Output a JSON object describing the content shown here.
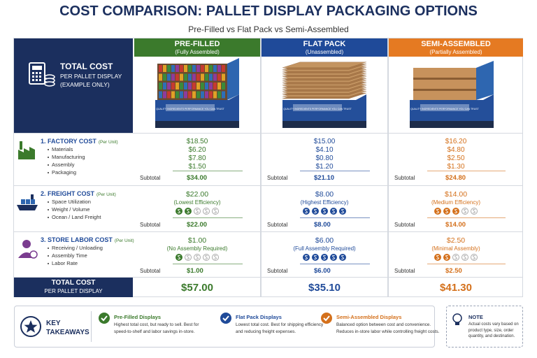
{
  "title": "COST COMPARISON: PALLET DISPLAY PACKAGING OPTIONS",
  "subtitle": "Pre-Filled vs Flat Pack vs Semi-Assembled",
  "header": {
    "total_cost": "TOTAL COST",
    "per_pallet": "PER PALLET DISPLAY",
    "example": "(EXAMPLE ONLY)"
  },
  "banner": "QUALITY INGREDIENTS PERFORMANCE YOU CAN TRUST",
  "columns": [
    {
      "name": "PRE-FILLED",
      "sub": "(Fully Assembled)",
      "color": "#3b7a2c",
      "text_color": "#3b7a2c"
    },
    {
      "name": "FLAT PACK",
      "sub": "(Unassembled)",
      "color": "#1f4a99",
      "text_color": "#1f4a99"
    },
    {
      "name": "SEMI-ASSEMBLED",
      "sub": "(Partially Assembled)",
      "color": "#e57a22",
      "text_color": "#d4701b"
    }
  ],
  "subtotal_label": "Subtotal",
  "factory": {
    "title": "1. FACTORY COST",
    "unit": "(Per Unit)",
    "items": [
      "Materials",
      "Manufacturing",
      "Assembly",
      "Packaging"
    ],
    "cells": [
      {
        "values": [
          "$18.50",
          "$6.20",
          "$7.80",
          "$1.50"
        ],
        "subtotal": "$34.00"
      },
      {
        "values": [
          "$15.00",
          "$4.10",
          "$0.80",
          "$1.20"
        ],
        "subtotal": "$21.10"
      },
      {
        "values": [
          "$16.20",
          "$4.80",
          "$2.50",
          "$1.30"
        ],
        "subtotal": "$24.80"
      }
    ]
  },
  "freight": {
    "title": "2. FREIGHT COST",
    "unit": "(Per Unit)",
    "items": [
      "Space Utilization",
      "Weight / Volume",
      "Ocean / Land Freight"
    ],
    "cells": [
      {
        "value": "$22.00",
        "note": "(Lowest Efficiency)",
        "rating": 2,
        "subtotal": "$22.00"
      },
      {
        "value": "$8.00",
        "note": "(Highest Efficiency)",
        "rating": 5,
        "subtotal": "$8.00"
      },
      {
        "value": "$14.00",
        "note": "(Medium Efficiency)",
        "rating": 3,
        "subtotal": "$14.00"
      }
    ]
  },
  "labor": {
    "title": "3. STORE LABOR COST",
    "unit": "(Per Unit)",
    "items": [
      "Receiving / Unloading",
      "Assembly Time",
      "Labor Rate"
    ],
    "cells": [
      {
        "value": "$1.00",
        "note": "(No Assembly Required)",
        "rating": 1,
        "subtotal": "$1.00"
      },
      {
        "value": "$6.00",
        "note": "(Full Assembly Required)",
        "rating": 5,
        "subtotal": "$6.00"
      },
      {
        "value": "$2.50",
        "note": "(Minimal Assembly)",
        "rating": 2,
        "subtotal": "$2.50"
      }
    ]
  },
  "total": {
    "label": "TOTAL COST",
    "sub": "PER PALLET DISPLAY",
    "values": [
      "$57.00",
      "$35.10",
      "$41.30"
    ]
  },
  "takeaways": {
    "heading": "KEY TAKEAWAYS",
    "items": [
      {
        "title": "Pre-Filled Displays",
        "text": "Highest total cost, but ready to sell. Best for speed-to-shelf and labor savings in-store."
      },
      {
        "title": "Flat Pack Displays",
        "text": "Lowest total cost. Best for shipping efficiency and reducing freight expenses."
      },
      {
        "title": "Semi-Assembled Displays",
        "text": "Balanced option between cost and convenience. Reduces in-store labor while controlling freight costs."
      }
    ]
  },
  "note": {
    "title": "NOTE",
    "text": "Actual costs vary based on product type, size, order quantity, and destination."
  }
}
